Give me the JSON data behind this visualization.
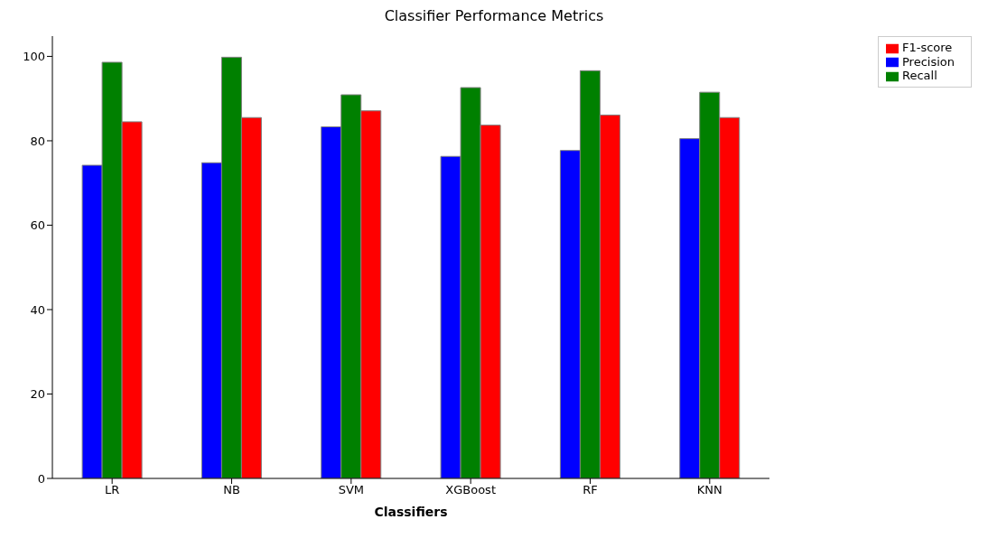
{
  "chart_data": {
    "type": "bar",
    "title": "Classifier Performance Metrics",
    "xlabel": "Classifiers",
    "categories": [
      "LR",
      "NB",
      "SVM",
      "XGBoost",
      "RF",
      "KNN"
    ],
    "series": [
      {
        "name": "Precision",
        "color": "#0000ff",
        "values": [
          74.2,
          74.8,
          83.3,
          76.3,
          77.7,
          80.5
        ]
      },
      {
        "name": "Recall",
        "color": "#008000",
        "values": [
          98.6,
          99.8,
          90.9,
          92.6,
          96.6,
          91.5
        ]
      },
      {
        "name": "F1-score",
        "color": "#ff0000",
        "values": [
          84.5,
          85.5,
          87.1,
          83.7,
          86.1,
          85.5
        ]
      }
    ],
    "ylim": [
      0,
      104.8
    ],
    "yticks": [
      0,
      20,
      40,
      60,
      80,
      100
    ],
    "grid": false,
    "legend": "top right"
  }
}
